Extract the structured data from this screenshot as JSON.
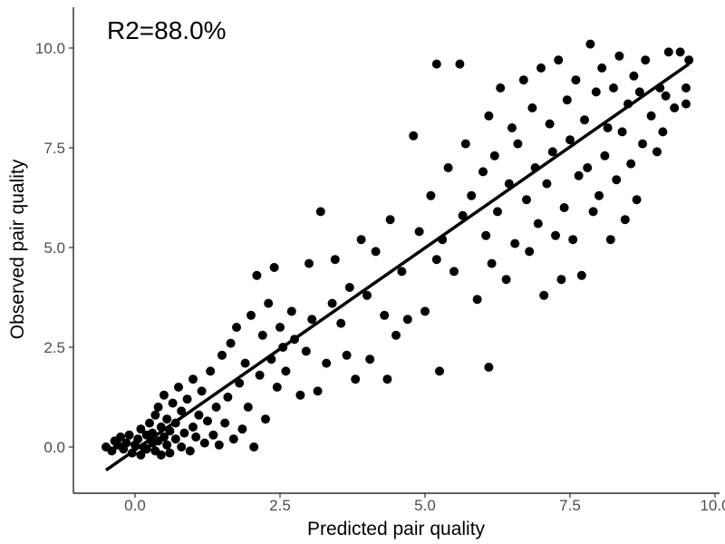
{
  "chart_data": {
    "type": "scatter",
    "title": "",
    "xlabel": "Predicted pair quality",
    "ylabel": "Observed pair quality",
    "annotation": "R2=88.0%",
    "xlim": [
      -0.5,
      10.0
    ],
    "ylim": [
      -1.2,
      11.0
    ],
    "x_ticks": [
      0,
      2.5,
      5,
      7.5,
      10
    ],
    "x_tick_labels": [
      "0.0",
      "2.5",
      "5.0",
      "7.5",
      "10.0"
    ],
    "y_ticks": [
      0,
      2.5,
      5,
      7.5,
      10
    ],
    "y_tick_labels": [
      "0.0",
      "2.5",
      "5.0",
      "7.5",
      "10.0"
    ],
    "grid": false,
    "point_color": "#000000",
    "fit_line": {
      "x": [
        -0.5,
        9.55
      ],
      "y": [
        -0.58,
        9.6
      ]
    },
    "points": [
      [
        -0.5,
        0.0
      ],
      [
        -0.4,
        -0.1
      ],
      [
        -0.35,
        0.15
      ],
      [
        -0.3,
        0.05
      ],
      [
        -0.25,
        0.25
      ],
      [
        -0.2,
        -0.05
      ],
      [
        -0.15,
        0.1
      ],
      [
        -0.1,
        0.3
      ],
      [
        -0.05,
        -0.15
      ],
      [
        0.0,
        0.05
      ],
      [
        0.05,
        0.2
      ],
      [
        0.1,
        -0.2
      ],
      [
        0.1,
        0.45
      ],
      [
        0.15,
        0.0
      ],
      [
        0.2,
        0.3
      ],
      [
        0.2,
        -0.05
      ],
      [
        0.25,
        0.6
      ],
      [
        0.3,
        0.1
      ],
      [
        0.3,
        0.35
      ],
      [
        0.35,
        -0.1
      ],
      [
        0.35,
        0.8
      ],
      [
        0.4,
        0.15
      ],
      [
        0.4,
        1.0
      ],
      [
        0.45,
        -0.2
      ],
      [
        0.45,
        0.5
      ],
      [
        0.5,
        0.25
      ],
      [
        0.5,
        1.3
      ],
      [
        0.55,
        0.05
      ],
      [
        0.55,
        0.7
      ],
      [
        0.6,
        -0.15
      ],
      [
        0.6,
        0.4
      ],
      [
        0.65,
        1.1
      ],
      [
        0.7,
        0.2
      ],
      [
        0.7,
        0.6
      ],
      [
        0.75,
        1.5
      ],
      [
        0.8,
        0.0
      ],
      [
        0.8,
        0.9
      ],
      [
        0.85,
        0.35
      ],
      [
        0.9,
        1.2
      ],
      [
        0.95,
        -0.1
      ],
      [
        1.0,
        0.5
      ],
      [
        1.0,
        1.7
      ],
      [
        1.05,
        0.25
      ],
      [
        1.1,
        0.8
      ],
      [
        1.15,
        1.4
      ],
      [
        1.2,
        0.1
      ],
      [
        1.25,
        0.65
      ],
      [
        1.3,
        1.9
      ],
      [
        1.35,
        0.3
      ],
      [
        1.4,
        1.0
      ],
      [
        1.45,
        0.05
      ],
      [
        1.5,
        2.3
      ],
      [
        1.55,
        0.6
      ],
      [
        1.6,
        1.25
      ],
      [
        1.65,
        2.6
      ],
      [
        1.7,
        0.2
      ],
      [
        1.75,
        3.0
      ],
      [
        1.8,
        1.6
      ],
      [
        1.85,
        0.45
      ],
      [
        1.9,
        2.1
      ],
      [
        1.95,
        1.0
      ],
      [
        2.0,
        3.3
      ],
      [
        2.05,
        0.0
      ],
      [
        2.1,
        4.3
      ],
      [
        2.15,
        1.8
      ],
      [
        2.2,
        2.8
      ],
      [
        2.25,
        0.7
      ],
      [
        2.3,
        3.6
      ],
      [
        2.35,
        2.2
      ],
      [
        2.4,
        4.5
      ],
      [
        2.45,
        1.5
      ],
      [
        2.5,
        3.0
      ],
      [
        2.55,
        2.5
      ],
      [
        2.6,
        1.9
      ],
      [
        2.7,
        3.4
      ],
      [
        2.75,
        2.7
      ],
      [
        2.85,
        1.3
      ],
      [
        2.95,
        2.4
      ],
      [
        3.0,
        4.6
      ],
      [
        3.05,
        3.2
      ],
      [
        3.15,
        1.4
      ],
      [
        3.2,
        5.9
      ],
      [
        3.3,
        2.1
      ],
      [
        3.4,
        3.6
      ],
      [
        3.45,
        4.7
      ],
      [
        3.55,
        3.1
      ],
      [
        3.65,
        2.3
      ],
      [
        3.7,
        4.0
      ],
      [
        3.8,
        1.7
      ],
      [
        3.9,
        5.2
      ],
      [
        4.0,
        3.8
      ],
      [
        4.05,
        2.2
      ],
      [
        4.15,
        4.9
      ],
      [
        4.3,
        3.3
      ],
      [
        4.35,
        1.7
      ],
      [
        4.4,
        5.7
      ],
      [
        4.5,
        2.8
      ],
      [
        4.6,
        4.4
      ],
      [
        4.7,
        3.2
      ],
      [
        4.8,
        7.8
      ],
      [
        4.9,
        5.4
      ],
      [
        5.0,
        3.4
      ],
      [
        5.1,
        6.3
      ],
      [
        5.2,
        4.7
      ],
      [
        5.3,
        5.2
      ],
      [
        5.2,
        9.6
      ],
      [
        5.25,
        1.9
      ],
      [
        5.4,
        7.0
      ],
      [
        5.5,
        4.4
      ],
      [
        5.6,
        9.6
      ],
      [
        5.65,
        5.8
      ],
      [
        5.7,
        7.6
      ],
      [
        5.8,
        6.3
      ],
      [
        5.9,
        3.7
      ],
      [
        6.0,
        6.9
      ],
      [
        6.05,
        5.3
      ],
      [
        6.1,
        8.3
      ],
      [
        6.1,
        2.0
      ],
      [
        6.15,
        4.6
      ],
      [
        6.2,
        7.3
      ],
      [
        6.25,
        5.9
      ],
      [
        6.3,
        9.0
      ],
      [
        6.4,
        4.2
      ],
      [
        6.45,
        6.6
      ],
      [
        6.5,
        8.0
      ],
      [
        6.55,
        5.1
      ],
      [
        6.6,
        7.6
      ],
      [
        6.7,
        9.2
      ],
      [
        6.75,
        6.2
      ],
      [
        6.8,
        4.9
      ],
      [
        6.85,
        8.5
      ],
      [
        6.9,
        7.0
      ],
      [
        6.95,
        5.6
      ],
      [
        7.0,
        9.5
      ],
      [
        7.05,
        3.8
      ],
      [
        7.1,
        6.6
      ],
      [
        7.15,
        8.1
      ],
      [
        7.2,
        7.4
      ],
      [
        7.25,
        5.3
      ],
      [
        7.3,
        9.7
      ],
      [
        7.35,
        4.2
      ],
      [
        7.4,
        6.0
      ],
      [
        7.45,
        8.7
      ],
      [
        7.5,
        7.7
      ],
      [
        7.55,
        5.2
      ],
      [
        7.6,
        9.2
      ],
      [
        7.65,
        6.8
      ],
      [
        7.7,
        4.3
      ],
      [
        7.75,
        8.2
      ],
      [
        7.8,
        7.0
      ],
      [
        7.85,
        10.1
      ],
      [
        7.9,
        5.9
      ],
      [
        7.95,
        8.9
      ],
      [
        8.0,
        6.3
      ],
      [
        8.05,
        9.5
      ],
      [
        8.1,
        7.3
      ],
      [
        8.15,
        8.0
      ],
      [
        8.2,
        5.2
      ],
      [
        8.25,
        9.0
      ],
      [
        8.3,
        6.7
      ],
      [
        8.35,
        9.8
      ],
      [
        8.4,
        7.9
      ],
      [
        8.45,
        5.7
      ],
      [
        8.5,
        8.6
      ],
      [
        8.55,
        7.1
      ],
      [
        8.6,
        9.3
      ],
      [
        8.65,
        6.2
      ],
      [
        8.7,
        8.9
      ],
      [
        8.75,
        7.6
      ],
      [
        8.8,
        9.7
      ],
      [
        8.9,
        8.3
      ],
      [
        9.0,
        7.4
      ],
      [
        9.05,
        9.0
      ],
      [
        9.1,
        7.9
      ],
      [
        9.15,
        8.8
      ],
      [
        9.2,
        9.9
      ],
      [
        9.3,
        8.5
      ],
      [
        9.4,
        9.9
      ],
      [
        9.5,
        9.0
      ],
      [
        9.55,
        9.7
      ],
      [
        9.5,
        8.6
      ]
    ]
  }
}
